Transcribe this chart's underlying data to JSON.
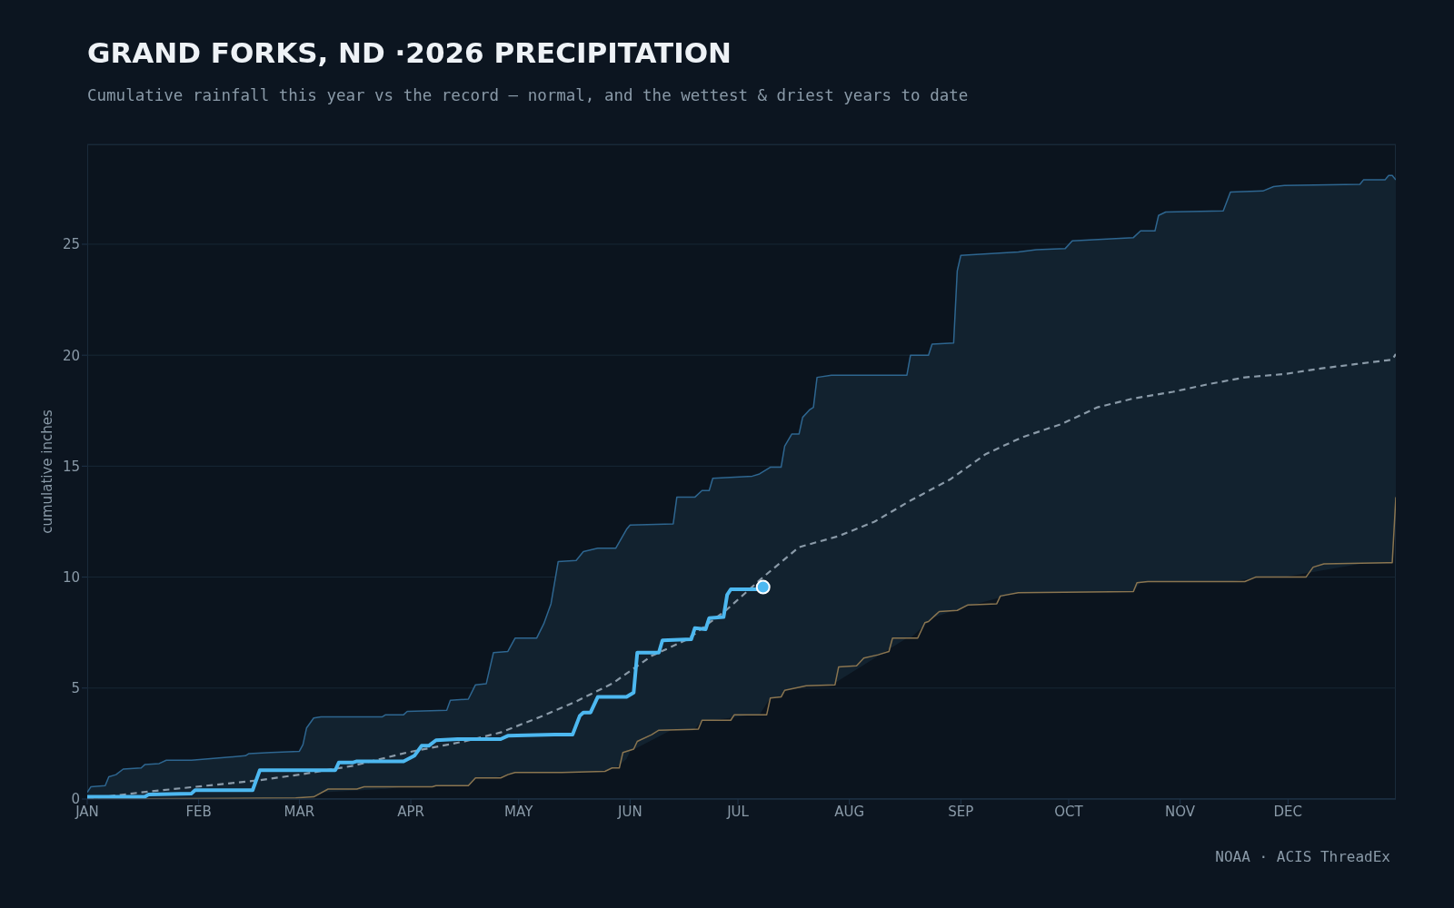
{
  "chart_data": {
    "type": "line",
    "title": "GRAND FORKS, ND ·2026 PRECIPITATION",
    "subtitle": "Cumulative rainfall this year vs the record — normal, and the wettest & driest years to date",
    "ylabel": "cumulative inches",
    "annotations": [
      "NOAA · ACIS ThreadEx"
    ],
    "xlim": [
      "--01-01",
      "--12-31"
    ],
    "xticks": [
      {
        "value": "--01-01",
        "label": "JAN"
      },
      {
        "value": "--02-01",
        "label": "FEB"
      },
      {
        "value": "--03-01",
        "label": "MAR"
      },
      {
        "value": "--04-01",
        "label": "APR"
      },
      {
        "value": "--05-01",
        "label": "MAY"
      },
      {
        "value": "--06-01",
        "label": "JUN"
      },
      {
        "value": "--07-01",
        "label": "JUL"
      },
      {
        "value": "--08-01",
        "label": "AUG"
      },
      {
        "value": "--09-01",
        "label": "SEP"
      },
      {
        "value": "--10-01",
        "label": "OCT"
      },
      {
        "value": "--11-01",
        "label": "NOV"
      },
      {
        "value": "--12-01",
        "label": "DEC"
      }
    ],
    "ylim": [
      0,
      29.5
    ],
    "yticks": [
      0,
      5,
      10,
      15,
      20,
      25
    ],
    "grid": "y",
    "marker": "none",
    "series": [
      {
        "color": "#2e6690",
        "lower": [
          0,
          0,
          0,
          0,
          0,
          0,
          0,
          0,
          0,
          0,
          0,
          0,
          0,
          0,
          0.05,
          0.06,
          0.08,
          0.1,
          0.3,
          0.45,
          0.45,
          0.55,
          0.55,
          0.57,
          0.57,
          0.6,
          0.95,
          0.95,
          0.95,
          1.1,
          1.2,
          1.2,
          1.2,
          1.2,
          1.2,
          1.21,
          1.22,
          1.23,
          1.4,
          1.8,
          2.15,
          3.15,
          3.15,
          3.15,
          3.55,
          3.55,
          3.55,
          3.8,
          3.8,
          4.55,
          4.6,
          4.9,
          4.95,
          5.05,
          5.07,
          5.1,
          5.1,
          5.1,
          5.14,
          7.25,
          7.25,
          8.0,
          8.15,
          8.5,
          8.5,
          8.6,
          9.3,
          9.31,
          9.32,
          9.32,
          9.33,
          9.35,
          9.75,
          9.8,
          9.8,
          9.8,
          9.8,
          9.8,
          10.0,
          10.0,
          10.0,
          10.6,
          10.6,
          10.62,
          10.63,
          10.65,
          13.6
        ],
        "upper": [
          0.3,
          0.55,
          0.6,
          1.0,
          1.1,
          1.35,
          1.4,
          1.55,
          1.6,
          1.75,
          1.75,
          1.95,
          2.05,
          2.1,
          2.15,
          2.45,
          3.2,
          3.65,
          3.7,
          3.7,
          3.8,
          3.8,
          3.95,
          4.0,
          4.45,
          4.5,
          5.15,
          5.2,
          6.6,
          6.65,
          7.25,
          7.25,
          7.9,
          8.8,
          10.7,
          10.75,
          11.15,
          11.3,
          11.3,
          12.15,
          12.35,
          12.4,
          13.6,
          13.6,
          13.9,
          13.9,
          14.45,
          14.55,
          14.65,
          14.95,
          14.95,
          15.9,
          16.45,
          16.45,
          17.2,
          17.55,
          17.65,
          19.0,
          19.1,
          19.1,
          20.0,
          20.0,
          20.5,
          20.55,
          23.8,
          24.5,
          24.65,
          24.75,
          24.8,
          25.15,
          25.2,
          25.3,
          25.6,
          25.6,
          26.3,
          26.45,
          26.5,
          27.35,
          27.4,
          27.6,
          27.65,
          27.7,
          27.9,
          27.9,
          28.1,
          28.1,
          27.9
        ],
        "x": [
          "--01-01",
          "--01-02",
          "--01-06",
          "--01-07",
          "--01-09",
          "--01-11",
          "--01-16",
          "--01-17",
          "--01-21",
          "--01-23",
          "--01-30",
          "--02-14",
          "--02-15",
          "--02-21",
          "--03-01",
          "--03-02",
          "--03-03",
          "--03-05",
          "--03-07",
          "--03-24",
          "--03-25",
          "--03-30",
          "--03-31",
          "--04-11",
          "--04-12",
          "--04-17",
          "--04-19",
          "--04-22",
          "--04-24",
          "--04-28",
          "--04-30",
          "--05-06",
          "--05-08",
          "--05-10",
          "--05-12",
          "--05-17",
          "--05-19",
          "--05-23",
          "--05-28",
          "--05-31",
          "--06-01",
          "--06-13",
          "--06-14",
          "--06-19",
          "--06-21",
          "--06-23",
          "--06-24",
          "--07-05",
          "--07-07",
          "--07-10",
          "--07-13",
          "--07-14",
          "--07-16",
          "--07-18",
          "--07-19",
          "--07-21",
          "--07-22",
          "--07-23",
          "--07-27",
          "--08-17",
          "--08-18",
          "--08-23",
          "--08-24",
          "--08-30",
          "--08-31",
          "--09-01",
          "--09-17",
          "--09-22",
          "--09-30",
          "--10-02",
          "--10-08",
          "--10-19",
          "--10-21",
          "--10-25",
          "--10-26",
          "--10-28",
          "--11-13",
          "--11-15",
          "--11-24",
          "--11-27",
          "--11-30",
          "--12-21",
          "--12-22",
          "--12-28",
          "--12-29",
          "--12-30",
          "--12-31"
        ],
        "values": [
          0.3,
          0.55,
          0.6,
          1.0,
          1.1,
          1.35,
          1.4,
          1.55,
          1.6,
          1.75,
          1.75,
          1.95,
          2.05,
          2.1,
          2.15,
          2.45,
          3.2,
          3.65,
          3.7,
          3.7,
          3.8,
          3.8,
          3.95,
          4.0,
          4.45,
          4.5,
          5.15,
          5.2,
          6.6,
          6.65,
          7.25,
          7.25,
          7.9,
          8.8,
          10.7,
          10.75,
          11.15,
          11.3,
          11.3,
          12.15,
          12.35,
          12.4,
          13.6,
          13.6,
          13.9,
          13.9,
          14.45,
          14.55,
          14.65,
          14.95,
          14.95,
          15.9,
          16.45,
          16.45,
          17.2,
          17.55,
          17.65,
          19.0,
          19.1,
          19.1,
          20.0,
          20.0,
          20.5,
          20.55,
          23.8,
          24.5,
          24.65,
          24.75,
          24.8,
          25.15,
          25.2,
          25.3,
          25.6,
          25.6,
          26.3,
          26.45,
          26.5,
          27.35,
          27.4,
          27.6,
          27.65,
          27.7,
          27.9,
          27.9,
          28.1,
          28.1,
          27.9
        ]
      },
      {
        "color": "#8a7550",
        "x": [
          "--01-01",
          "--02-28",
          "--03-05",
          "--03-09",
          "--03-17",
          "--03-19",
          "--04-07",
          "--04-08",
          "--04-17",
          "--04-19",
          "--04-26",
          "--04-28",
          "--04-30",
          "--05-13",
          "--05-25",
          "--05-27",
          "--05-29",
          "--05-30",
          "--06-02",
          "--06-03",
          "--06-07",
          "--06-09",
          "--06-20",
          "--06-21",
          "--06-29",
          "--06-30",
          "--07-09",
          "--07-10",
          "--07-13",
          "--07-14",
          "--07-17",
          "--07-20",
          "--07-28",
          "--07-29",
          "--08-03",
          "--08-05",
          "--08-09",
          "--08-12",
          "--08-13",
          "--08-20",
          "--08-22",
          "--08-23",
          "--08-25",
          "--08-26",
          "--08-31",
          "--09-03",
          "--09-11",
          "--09-12",
          "--09-17",
          "--10-19",
          "--10-20",
          "--10-23",
          "--11-19",
          "--11-22",
          "--12-06",
          "--12-08",
          "--12-11",
          "--12-30",
          "--12-31"
        ],
        "values": [
          0,
          0.05,
          0.1,
          0.45,
          0.45,
          0.55,
          0.55,
          0.6,
          0.6,
          0.95,
          0.95,
          1.1,
          1.2,
          1.2,
          1.25,
          1.4,
          1.4,
          2.1,
          2.25,
          2.6,
          2.9,
          3.1,
          3.15,
          3.55,
          3.55,
          3.8,
          3.8,
          4.55,
          4.6,
          4.9,
          5.0,
          5.1,
          5.15,
          5.95,
          6.0,
          6.35,
          6.5,
          6.65,
          7.25,
          7.25,
          7.95,
          8.0,
          8.3,
          8.45,
          8.5,
          8.75,
          8.8,
          9.15,
          9.3,
          9.35,
          9.75,
          9.8,
          9.8,
          10.0,
          10.0,
          10.45,
          10.6,
          10.65,
          13.6
        ]
      },
      {
        "color": "#8a9aa8",
        "line_style": "dashed",
        "x": [
          "--01-01",
          "--01-16",
          "--01-31",
          "--02-18",
          "--03-01",
          "--03-16",
          "--03-31",
          "--04-16",
          "--04-26",
          "--05-07",
          "--05-17",
          "--05-27",
          "--06-07",
          "--06-17",
          "--06-28",
          "--07-08",
          "--07-18",
          "--07-29",
          "--08-08",
          "--08-18",
          "--08-29",
          "--09-08",
          "--09-18",
          "--09-29",
          "--10-09",
          "--10-19",
          "--10-30",
          "--11-09",
          "--11-19",
          "--11-30",
          "--12-10",
          "--12-20",
          "--12-30",
          "--12-31"
        ],
        "values": [
          0,
          0.3,
          0.55,
          0.85,
          1.1,
          1.5,
          2.1,
          2.6,
          3.0,
          3.7,
          4.4,
          5.2,
          6.45,
          7.2,
          8.55,
          10.0,
          11.35,
          11.85,
          12.5,
          13.45,
          14.4,
          15.55,
          16.3,
          16.9,
          17.65,
          18.05,
          18.35,
          18.7,
          19.0,
          19.15,
          19.4,
          19.6,
          19.8,
          20.05
        ]
      },
      {
        "color": "#4db8f0",
        "x": [
          "--01-01",
          "--01-17",
          "--01-18",
          "--01-30",
          "--01-31",
          "--02-16",
          "--02-18",
          "--03-11",
          "--03-12",
          "--03-16",
          "--03-17",
          "--03-30",
          "--04-02",
          "--04-04",
          "--04-06",
          "--04-08",
          "--04-14",
          "--04-26",
          "--04-28",
          "--05-11",
          "--05-16",
          "--05-18",
          "--05-19",
          "--05-21",
          "--05-23",
          "--05-31",
          "--06-02",
          "--06-03",
          "--06-09",
          "--06-10",
          "--06-18",
          "--06-19",
          "--06-22",
          "--06-23",
          "--06-27",
          "--06-28",
          "--06-29",
          "--07-07",
          "--07-08"
        ],
        "values": [
          0.1,
          0.1,
          0.2,
          0.25,
          0.4,
          0.4,
          1.3,
          1.3,
          1.65,
          1.65,
          1.7,
          1.7,
          1.95,
          2.4,
          2.4,
          2.65,
          2.7,
          2.7,
          2.85,
          2.9,
          2.9,
          3.75,
          3.9,
          3.9,
          4.6,
          4.6,
          4.8,
          6.6,
          6.6,
          7.15,
          7.2,
          7.7,
          7.65,
          8.15,
          8.2,
          9.2,
          9.45,
          9.45,
          9.55
        ]
      },
      {
        "type": "scatter",
        "color": "#4db8f0",
        "marker": "circle",
        "x": [
          "--07-08"
        ],
        "values": [
          9.55
        ]
      }
    ]
  }
}
